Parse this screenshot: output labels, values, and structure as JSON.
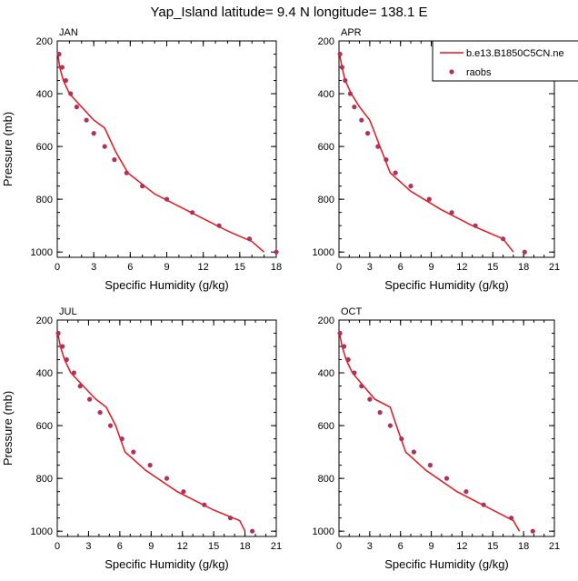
{
  "figure": {
    "title": "Yap_Island  latitude= 9.4 N longitude= 138.1 E"
  },
  "legend": {
    "model_label": "b.e13.B1850C5CN.ne",
    "obs_label": "raobs",
    "placement": "top-right of APR panel"
  },
  "colors": {
    "model_line": "#e8141b",
    "obs_marker": "#b3305a"
  },
  "chart_data": [
    {
      "type": "line",
      "panel_label": "JAN",
      "xlabel": "Specific Humidity (g/kg)",
      "ylabel": "Pressure (mb)",
      "xlim": [
        0,
        18
      ],
      "ylim": [
        200,
        1020
      ],
      "y_inverted": true,
      "xticks": [
        0,
        3,
        6,
        9,
        12,
        15,
        18
      ],
      "yticks": [
        200,
        400,
        600,
        800,
        1000
      ],
      "series": [
        {
          "name": "b.e13.B1850C5CN.ne",
          "kind": "line",
          "points": [
            [
              0.05,
              250
            ],
            [
              0.2,
              300
            ],
            [
              0.5,
              350
            ],
            [
              1.0,
              400
            ],
            [
              2.0,
              450
            ],
            [
              3.0,
              500
            ],
            [
              3.9,
              530
            ],
            [
              4.8,
              620
            ],
            [
              5.8,
              700
            ],
            [
              8.0,
              780
            ],
            [
              11.0,
              850
            ],
            [
              14.0,
              920
            ],
            [
              16.0,
              960
            ],
            [
              17.0,
              1000
            ]
          ]
        },
        {
          "name": "raobs",
          "kind": "scatter",
          "points": [
            [
              0.15,
              250
            ],
            [
              0.4,
              300
            ],
            [
              0.7,
              350
            ],
            [
              1.1,
              400
            ],
            [
              1.6,
              450
            ],
            [
              2.4,
              500
            ],
            [
              3.0,
              550
            ],
            [
              3.9,
              600
            ],
            [
              4.7,
              650
            ],
            [
              5.7,
              700
            ],
            [
              7.0,
              750
            ],
            [
              9.0,
              800
            ],
            [
              11.1,
              850
            ],
            [
              13.3,
              900
            ],
            [
              15.8,
              950
            ],
            [
              18.0,
              1000
            ]
          ]
        }
      ]
    },
    {
      "type": "line",
      "panel_label": "APR",
      "xlabel": "Specific Humidity (g/kg)",
      "ylabel": "",
      "xlim": [
        0,
        21
      ],
      "ylim": [
        200,
        1020
      ],
      "y_inverted": true,
      "xticks": [
        0,
        3,
        6,
        9,
        12,
        15,
        18,
        21
      ],
      "yticks": [
        200,
        400,
        600,
        800,
        1000
      ],
      "series": [
        {
          "name": "b.e13.B1850C5CN.ne",
          "kind": "line",
          "points": [
            [
              0.05,
              250
            ],
            [
              0.3,
              300
            ],
            [
              0.6,
              350
            ],
            [
              1.2,
              400
            ],
            [
              2.0,
              450
            ],
            [
              3.0,
              500
            ],
            [
              4.0,
              600
            ],
            [
              5.0,
              700
            ],
            [
              7.0,
              770
            ],
            [
              10.0,
              840
            ],
            [
              13.0,
              900
            ],
            [
              16.0,
              950
            ],
            [
              17.0,
              1000
            ]
          ]
        },
        {
          "name": "raobs",
          "kind": "scatter",
          "points": [
            [
              0.1,
              250
            ],
            [
              0.3,
              300
            ],
            [
              0.6,
              350
            ],
            [
              1.1,
              400
            ],
            [
              1.5,
              450
            ],
            [
              2.2,
              500
            ],
            [
              2.8,
              550
            ],
            [
              3.8,
              600
            ],
            [
              4.6,
              650
            ],
            [
              5.5,
              700
            ],
            [
              7.0,
              750
            ],
            [
              8.8,
              800
            ],
            [
              11.0,
              850
            ],
            [
              13.3,
              900
            ],
            [
              16.0,
              950
            ],
            [
              18.1,
              1000
            ]
          ]
        }
      ]
    },
    {
      "type": "line",
      "panel_label": "JUL",
      "xlabel": "Specific Humidity (g/kg)",
      "ylabel": "Pressure (mb)",
      "xlim": [
        0,
        21
      ],
      "ylim": [
        200,
        1020
      ],
      "y_inverted": true,
      "xticks": [
        0,
        3,
        6,
        9,
        12,
        15,
        18,
        21
      ],
      "yticks": [
        200,
        400,
        600,
        800,
        1000
      ],
      "series": [
        {
          "name": "b.e13.B1850C5CN.ne",
          "kind": "line",
          "points": [
            [
              0.05,
              250
            ],
            [
              0.3,
              300
            ],
            [
              0.7,
              350
            ],
            [
              1.3,
              400
            ],
            [
              2.5,
              450
            ],
            [
              3.7,
              500
            ],
            [
              4.7,
              530
            ],
            [
              5.6,
              600
            ],
            [
              6.5,
              700
            ],
            [
              8.5,
              770
            ],
            [
              11.5,
              850
            ],
            [
              15.0,
              920
            ],
            [
              17.5,
              960
            ],
            [
              18.0,
              1000
            ]
          ]
        },
        {
          "name": "raobs",
          "kind": "scatter",
          "points": [
            [
              0.1,
              250
            ],
            [
              0.5,
              300
            ],
            [
              0.9,
              350
            ],
            [
              1.6,
              400
            ],
            [
              2.2,
              450
            ],
            [
              3.1,
              500
            ],
            [
              4.1,
              550
            ],
            [
              5.1,
              600
            ],
            [
              6.2,
              650
            ],
            [
              7.3,
              700
            ],
            [
              8.9,
              750
            ],
            [
              10.5,
              800
            ],
            [
              12.1,
              850
            ],
            [
              14.1,
              900
            ],
            [
              16.6,
              950
            ],
            [
              18.7,
              1000
            ]
          ]
        }
      ]
    },
    {
      "type": "line",
      "panel_label": "OCT",
      "xlabel": "Specific Humidity (g/kg)",
      "ylabel": "",
      "xlim": [
        0,
        21
      ],
      "ylim": [
        200,
        1020
      ],
      "y_inverted": true,
      "xticks": [
        0,
        3,
        6,
        9,
        12,
        15,
        18,
        21
      ],
      "yticks": [
        200,
        400,
        600,
        800,
        1000
      ],
      "series": [
        {
          "name": "b.e13.B1850C5CN.ne",
          "kind": "line",
          "points": [
            [
              0.05,
              250
            ],
            [
              0.3,
              300
            ],
            [
              0.7,
              350
            ],
            [
              1.3,
              400
            ],
            [
              2.4,
              450
            ],
            [
              3.5,
              500
            ],
            [
              5.0,
              530
            ],
            [
              5.6,
              600
            ],
            [
              6.5,
              700
            ],
            [
              8.5,
              770
            ],
            [
              11.5,
              850
            ],
            [
              15.0,
              920
            ],
            [
              17.0,
              960
            ],
            [
              17.6,
              1000
            ]
          ]
        },
        {
          "name": "raobs",
          "kind": "scatter",
          "points": [
            [
              0.1,
              250
            ],
            [
              0.5,
              300
            ],
            [
              0.9,
              350
            ],
            [
              1.5,
              400
            ],
            [
              2.2,
              450
            ],
            [
              3.0,
              500
            ],
            [
              4.0,
              550
            ],
            [
              5.0,
              600
            ],
            [
              6.1,
              650
            ],
            [
              7.3,
              700
            ],
            [
              8.9,
              750
            ],
            [
              10.5,
              800
            ],
            [
              12.4,
              850
            ],
            [
              14.1,
              900
            ],
            [
              16.8,
              950
            ],
            [
              18.9,
              1000
            ]
          ]
        }
      ]
    }
  ]
}
